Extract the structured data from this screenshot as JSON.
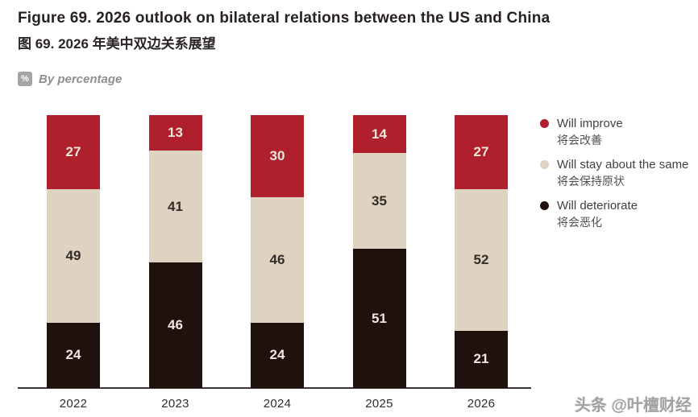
{
  "header": {
    "title_en": "Figure 69. 2026 outlook on bilateral relations between the US and China",
    "title_zh": "图 69. 2026 年美中双边关系展望",
    "unit_badge": "%",
    "unit_label": "By percentage"
  },
  "chart_data": {
    "type": "bar",
    "stacked": true,
    "unit": "percent",
    "categories": [
      "2022",
      "2023",
      "2024",
      "2025",
      "2026"
    ],
    "series": [
      {
        "name": "Will improve",
        "name_zh": "将会改善",
        "color": "#b01f2c",
        "label_color": "#f0e7da",
        "values": [
          27,
          13,
          30,
          14,
          27
        ]
      },
      {
        "name": "Will stay about the same",
        "name_zh": "将会保持原状",
        "color": "#ded2c0",
        "label_color": "#352b27",
        "values": [
          49,
          41,
          46,
          35,
          52
        ]
      },
      {
        "name": "Will deteriorate",
        "name_zh": "将会恶化",
        "color": "#1f110e",
        "label_color": "#f0e7da",
        "values": [
          24,
          46,
          24,
          51,
          21
        ]
      }
    ],
    "ylim": [
      0,
      100
    ],
    "grid": false,
    "legend_position": "right"
  },
  "watermark": "头条 @叶檀财经"
}
